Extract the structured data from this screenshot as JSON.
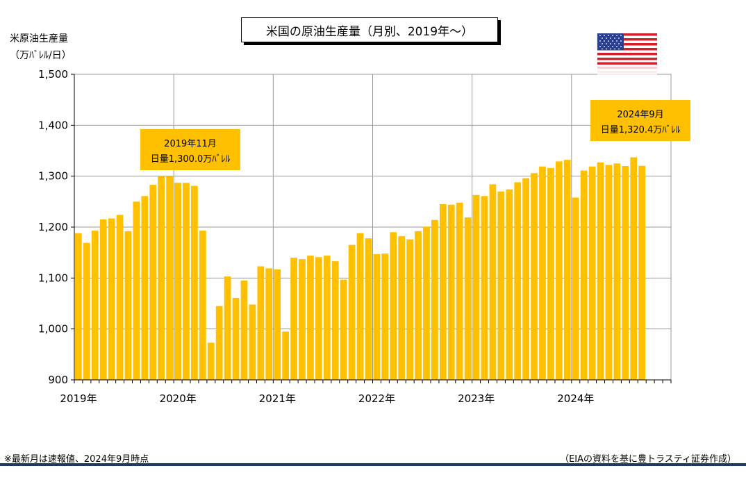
{
  "title": "米国の原油生産量（月別、2019年～）",
  "y_unit_line1": "米原油生産量",
  "y_unit_line2": "（万ﾊﾞﾚﾙ/日）",
  "callouts": [
    {
      "line1": "2019年11月",
      "line2": "日量1,300.0万ﾊﾞﾚﾙ"
    },
    {
      "line1": "2024年9月",
      "line2": "日量1,320.4万ﾊﾞﾚﾙ"
    }
  ],
  "footnote": "※最新月は速報値、2024年9月時点",
  "source": "（EIAの資料を基に豊トラスティ証券作成）",
  "flag_icon": "us-flag-icon",
  "chart_data": {
    "type": "bar",
    "ylim": [
      900,
      1500
    ],
    "ytick_values": [
      900,
      1000,
      1100,
      1200,
      1300,
      1400,
      1500
    ],
    "yticks": [
      "900",
      "1,000",
      "1,100",
      "1,200",
      "1,300",
      "1,400",
      "1,500"
    ],
    "xlabels": [
      "2019年",
      "2020年",
      "2021年",
      "2022年",
      "2023年",
      "2024年"
    ],
    "grid": true,
    "bar_color": "#ffc000",
    "categories": [
      "2019-01",
      "2019-02",
      "2019-03",
      "2019-04",
      "2019-05",
      "2019-06",
      "2019-07",
      "2019-08",
      "2019-09",
      "2019-10",
      "2019-11",
      "2019-12",
      "2020-01",
      "2020-02",
      "2020-03",
      "2020-04",
      "2020-05",
      "2020-06",
      "2020-07",
      "2020-08",
      "2020-09",
      "2020-10",
      "2020-11",
      "2020-12",
      "2021-01",
      "2021-02",
      "2021-03",
      "2021-04",
      "2021-05",
      "2021-06",
      "2021-07",
      "2021-08",
      "2021-09",
      "2021-10",
      "2021-11",
      "2021-12",
      "2022-01",
      "2022-02",
      "2022-03",
      "2022-04",
      "2022-05",
      "2022-06",
      "2022-07",
      "2022-08",
      "2022-09",
      "2022-10",
      "2022-11",
      "2022-12",
      "2023-01",
      "2023-02",
      "2023-03",
      "2023-04",
      "2023-05",
      "2023-06",
      "2023-07",
      "2023-08",
      "2023-09",
      "2023-10",
      "2023-11",
      "2023-12",
      "2024-01",
      "2024-02",
      "2024-03",
      "2024-04",
      "2024-05",
      "2024-06",
      "2024-07",
      "2024-08",
      "2024-09"
    ],
    "values": [
      1188,
      1169,
      1193,
      1215,
      1217,
      1224,
      1192,
      1250,
      1261,
      1283,
      1300.0,
      1300,
      1287,
      1287,
      1281,
      1193,
      973,
      1045,
      1103,
      1061,
      1095,
      1048,
      1123,
      1119,
      1117,
      995,
      1140,
      1137,
      1144,
      1141,
      1144,
      1133,
      1097,
      1165,
      1188,
      1178,
      1147,
      1148,
      1190,
      1182,
      1176,
      1192,
      1201,
      1214,
      1245,
      1244,
      1248,
      1219,
      1263,
      1261,
      1284,
      1270,
      1274,
      1288,
      1296,
      1306,
      1319,
      1316,
      1329,
      1332,
      1258,
      1311,
      1319,
      1327,
      1322,
      1325,
      1320,
      1337,
      1320.4
    ]
  }
}
